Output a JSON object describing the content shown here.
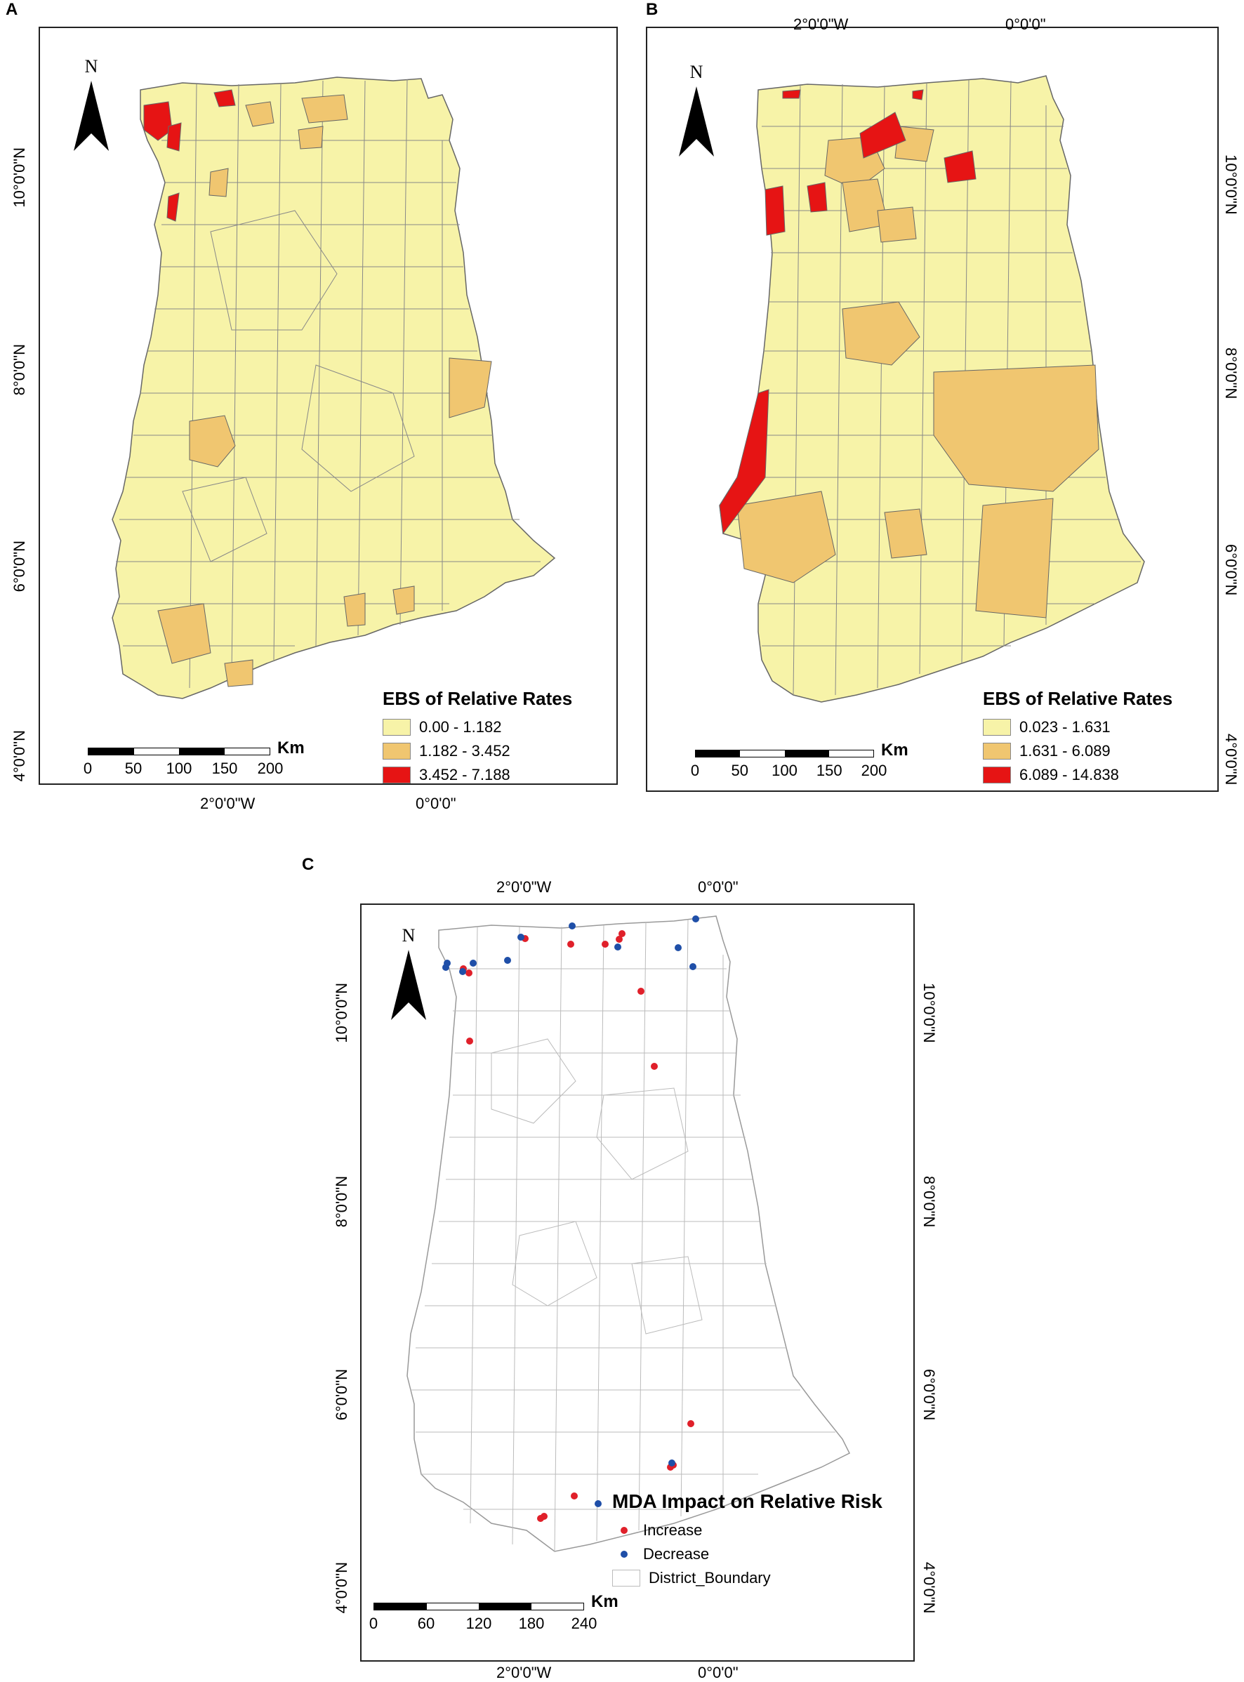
{
  "colors": {
    "low": "#f7f3a8",
    "mid": "#f0c670",
    "high": "#e61414",
    "increase": "#e0202a",
    "decrease": "#1f4fa8"
  },
  "panel_a": {
    "letter": "A",
    "north": "N",
    "top_coords": [],
    "bottom_coords": [
      "2°0'0\"W",
      "0°0'0\""
    ],
    "left_coords": [
      "10°0'0\"N",
      "8°0'0\"N",
      "6°0'0\"N",
      "4°0'0\"N"
    ],
    "right_coords": [],
    "legend_title": "EBS of Relative Rates",
    "legend_items": [
      {
        "label": "0.00 - 1.182",
        "color_key": "low"
      },
      {
        "label": "1.182 - 3.452",
        "color_key": "mid"
      },
      {
        "label": "3.452 - 7.188",
        "color_key": "high"
      }
    ],
    "scale_unit": "Km",
    "scale_labels": [
      "0",
      "50",
      "100",
      "150",
      "200"
    ]
  },
  "panel_b": {
    "letter": "B",
    "north": "N",
    "top_coords": [
      "2°0'0\"W",
      "0°0'0\""
    ],
    "right_coords": [
      "10°0'0\"N",
      "8°0'0\"N",
      "6°0'0\"N",
      "4°0'0\"N"
    ],
    "legend_title": "EBS of Relative Rates",
    "legend_items": [
      {
        "label": "0.023 - 1.631",
        "color_key": "low"
      },
      {
        "label": "1.631 - 6.089",
        "color_key": "mid"
      },
      {
        "label": "6.089 - 14.838",
        "color_key": "high"
      }
    ],
    "scale_unit": "Km",
    "scale_labels": [
      "0",
      "50",
      "100",
      "150",
      "200"
    ]
  },
  "panel_c": {
    "letter": "C",
    "north": "N",
    "top_coords": [
      "2°0'0\"W",
      "0°0'0\""
    ],
    "bottom_coords": [
      "2°0'0\"W",
      "0°0'0\""
    ],
    "left_coords": [
      "10°0'0\"N",
      "8°0'0\"N",
      "6°0'0\"N",
      "4°0'0\"N"
    ],
    "right_coords": [
      "10°0'0\"N",
      "8°0'0\"N",
      "6°0'0\"N",
      "4°0'0\"N"
    ],
    "legend_title": "MDA Impact on Relative Risk",
    "legend_items": [
      {
        "label": "Increase",
        "kind": "dot",
        "color_key": "increase"
      },
      {
        "label": "Decrease",
        "kind": "dot",
        "color_key": "decrease"
      },
      {
        "label": "District_Boundary",
        "kind": "box"
      }
    ],
    "scale_unit": "Km",
    "scale_labels": [
      "0",
      "60",
      "120",
      "180",
      "240"
    ]
  }
}
